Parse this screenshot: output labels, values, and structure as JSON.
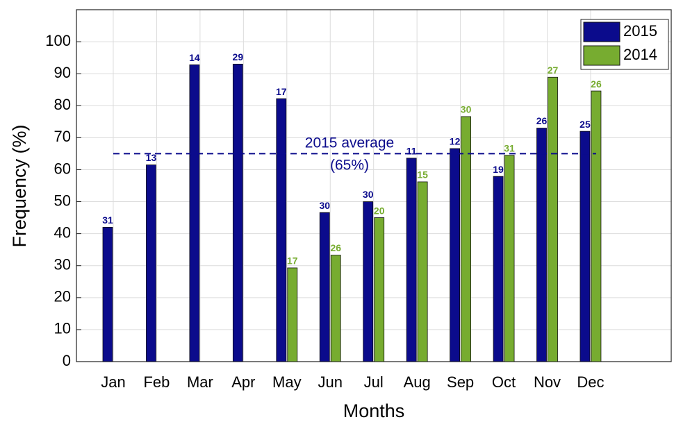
{
  "chart_data": {
    "type": "bar",
    "xlabel": "Months",
    "ylabel": "Frequency (%)",
    "categories": [
      "Jan",
      "Feb",
      "Mar",
      "Apr",
      "May",
      "Jun",
      "Jul",
      "Aug",
      "Sep",
      "Oct",
      "Nov",
      "Dec"
    ],
    "series": [
      {
        "name": "2015",
        "color": "#0b0b8c",
        "values": [
          42,
          61.5,
          92.8,
          93,
          82.2,
          46.6,
          50,
          63.6,
          66.6,
          57.9,
          73,
          72
        ],
        "counts": [
          31,
          13,
          14,
          29,
          17,
          30,
          30,
          11,
          12,
          19,
          26,
          25
        ]
      },
      {
        "name": "2014",
        "color": "#77ac30",
        "values": [
          null,
          null,
          null,
          null,
          29.3,
          33.3,
          45,
          56.2,
          76.6,
          64.5,
          88.9,
          84.6
        ],
        "counts": [
          null,
          null,
          null,
          null,
          17,
          26,
          20,
          15,
          30,
          31,
          27,
          26
        ]
      }
    ],
    "average": {
      "value": 65,
      "label": [
        "2015 average",
        "(65%)"
      ],
      "color": "#0b0b8c"
    },
    "ylim": [
      0,
      110
    ],
    "yticks": [
      0,
      10,
      20,
      30,
      40,
      50,
      60,
      70,
      80,
      90,
      100
    ],
    "grid": true,
    "legend": "top-right"
  }
}
